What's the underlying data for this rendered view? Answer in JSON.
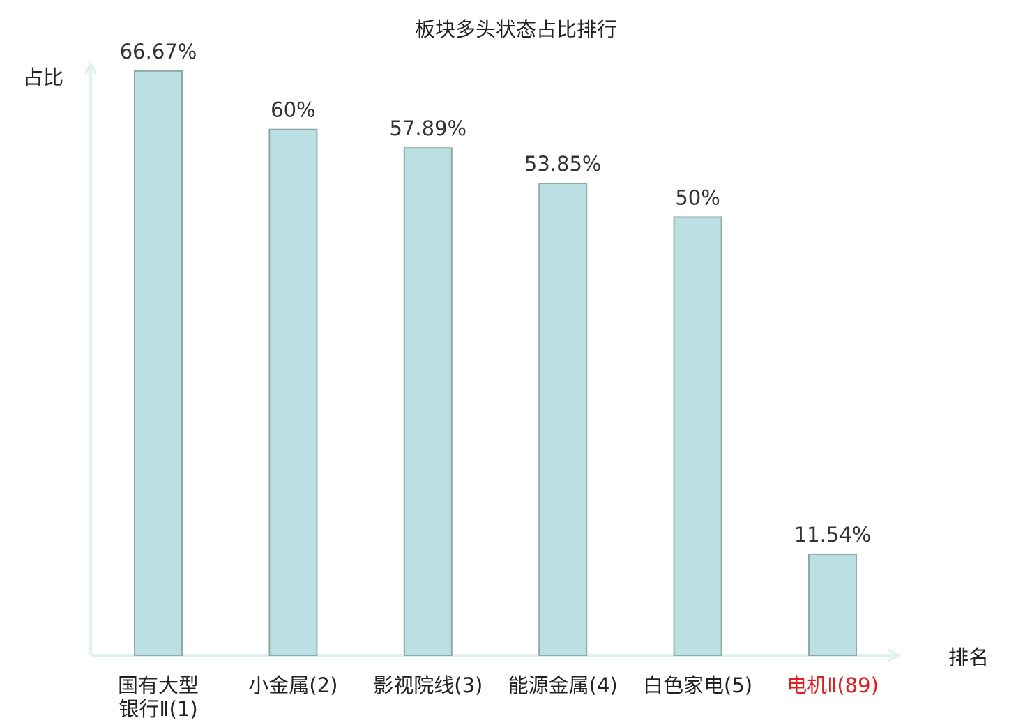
{
  "chart_data": {
    "type": "bar",
    "title": "板块多头状态占比排行",
    "ylabel": "占比",
    "xlabel": "排名",
    "categories": [
      "国有大型银行Ⅱ(1)",
      "小金属(2)",
      "影视院线(3)",
      "能源金属(4)",
      "白色家电(5)",
      "电机Ⅱ(89)"
    ],
    "category_lines": [
      [
        "国有大型",
        "银行Ⅱ(1)"
      ],
      [
        "小金属(2)"
      ],
      [
        "影视院线(3)"
      ],
      [
        "能源金属(4)"
      ],
      [
        "白色家电(5)"
      ],
      [
        "电机Ⅱ(89)"
      ]
    ],
    "values": [
      66.67,
      60,
      57.89,
      53.85,
      50,
      11.54
    ],
    "value_labels": [
      "66.67%",
      "60%",
      "57.89%",
      "53.85%",
      "50%",
      "11.54%"
    ],
    "ylim": [
      0,
      70
    ],
    "grid": false,
    "highlight_index": 5,
    "colors": {
      "bar_fill": "#bbe0e3",
      "bar_stroke": "#8fa9ab",
      "axis": "#e0f1ef",
      "label": "#222222",
      "highlight_label": "#e02020"
    }
  }
}
